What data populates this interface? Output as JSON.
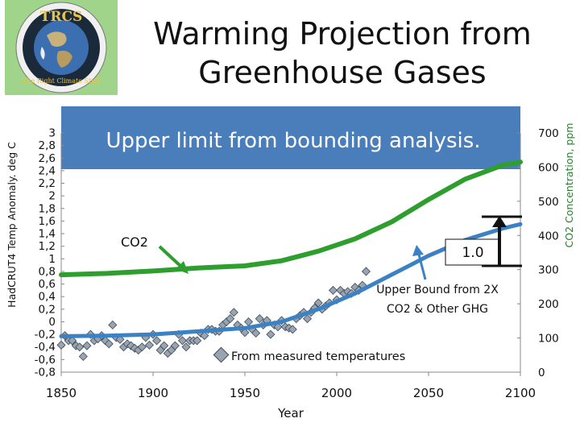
{
  "header": {
    "title_line1": "Warming Projection from",
    "title_line2": "Greenhouse Gases",
    "logo_text_top": "TRCS",
    "logo_text_arc": "The Right Climate Stuff"
  },
  "colors": {
    "banner": "#4a7ebb",
    "co2_line": "#2e9e2e",
    "model_line": "#3b82c4",
    "markers": "#9aa4b0",
    "axis_right": "#2e7d32"
  },
  "chart_data": {
    "type": "line",
    "xlabel": "Year",
    "ylabel_left": "HadCRUT4 Temp Anomaly. deg C",
    "ylabel_right": "CO2 Concentration, ppm",
    "x_ticks": [
      "1850",
      "1900",
      "1950",
      "2000",
      "2050",
      "2100"
    ],
    "xlim": [
      1850,
      2100
    ],
    "y_left_ticks": [
      "3",
      "2,8",
      "2,6",
      "2,4",
      "2,2",
      "2",
      "1,8",
      "1,6",
      "1,4",
      "1,2",
      "1",
      "0,8",
      "0,6",
      "0,4",
      "0,2",
      "0",
      "-0,2",
      "-0,4",
      "-0,6",
      "-0,8"
    ],
    "ylim_left": [
      -0.8,
      3.0
    ],
    "y_right_ticks": [
      "0",
      "100",
      "200",
      "300",
      "400",
      "500",
      "600",
      "700"
    ],
    "ylim_right": [
      0,
      700
    ],
    "annotations": {
      "banner": "Upper limit from bounding analysis.",
      "co2_label": "CO2",
      "sensitivity_box": "1.0",
      "upper_bound_line1": "Upper Bound from 2X",
      "upper_bound_line2": "CO2 & Other GHG",
      "measured_legend": "From measured temperatures"
    },
    "series": [
      {
        "name": "CO2 concentration (ppm)",
        "axis": "right",
        "x": [
          1850,
          1875,
          1900,
          1925,
          1950,
          1970,
          1990,
          2010,
          2030,
          2050,
          2070,
          2090,
          2100
        ],
        "values": [
          285,
          289,
          296,
          305,
          311,
          326,
          354,
          390,
          440,
          505,
          565,
          605,
          615
        ]
      },
      {
        "name": "Upper Bound from 2X CO2 & Other GHG",
        "axis": "left",
        "x": [
          1850,
          1875,
          1900,
          1925,
          1950,
          1970,
          1990,
          2010,
          2030,
          2050,
          2070,
          2090,
          2100
        ],
        "values": [
          -0.23,
          -0.22,
          -0.2,
          -0.15,
          -0.1,
          0.0,
          0.2,
          0.45,
          0.75,
          1.05,
          1.3,
          1.48,
          1.55
        ]
      },
      {
        "name": "From measured temperatures",
        "axis": "left",
        "x": [
          1850,
          1852,
          1854,
          1856,
          1858,
          1860,
          1862,
          1864,
          1866,
          1868,
          1870,
          1872,
          1874,
          1876,
          1878,
          1880,
          1882,
          1884,
          1886,
          1888,
          1890,
          1892,
          1894,
          1896,
          1898,
          1900,
          1902,
          1904,
          1906,
          1908,
          1910,
          1912,
          1914,
          1916,
          1918,
          1920,
          1922,
          1924,
          1926,
          1928,
          1930,
          1932,
          1934,
          1936,
          1938,
          1940,
          1942,
          1944,
          1946,
          1948,
          1950,
          1952,
          1954,
          1956,
          1958,
          1960,
          1962,
          1964,
          1966,
          1968,
          1970,
          1972,
          1974,
          1976,
          1978,
          1980,
          1982,
          1984,
          1986,
          1988,
          1990,
          1992,
          1994,
          1996,
          1998,
          2000,
          2002,
          2004,
          2006,
          2008,
          2010,
          2012,
          2014,
          2016
        ],
        "values": [
          -0.37,
          -0.22,
          -0.3,
          -0.3,
          -0.38,
          -0.4,
          -0.55,
          -0.38,
          -0.2,
          -0.3,
          -0.27,
          -0.22,
          -0.3,
          -0.35,
          -0.05,
          -0.25,
          -0.28,
          -0.4,
          -0.35,
          -0.38,
          -0.42,
          -0.45,
          -0.4,
          -0.25,
          -0.37,
          -0.2,
          -0.3,
          -0.45,
          -0.38,
          -0.5,
          -0.45,
          -0.38,
          -0.2,
          -0.3,
          -0.4,
          -0.3,
          -0.3,
          -0.3,
          -0.18,
          -0.22,
          -0.12,
          -0.12,
          -0.15,
          -0.15,
          -0.05,
          0.0,
          0.05,
          0.15,
          -0.05,
          -0.1,
          -0.17,
          0.0,
          -0.12,
          -0.18,
          0.05,
          -0.05,
          0.02,
          -0.2,
          -0.05,
          -0.08,
          0.02,
          -0.08,
          -0.1,
          -0.12,
          0.05,
          0.1,
          0.15,
          0.05,
          0.15,
          0.22,
          0.3,
          0.2,
          0.25,
          0.3,
          0.5,
          0.35,
          0.5,
          0.45,
          0.48,
          0.45,
          0.55,
          0.5,
          0.58,
          0.8
        ]
      }
    ]
  }
}
